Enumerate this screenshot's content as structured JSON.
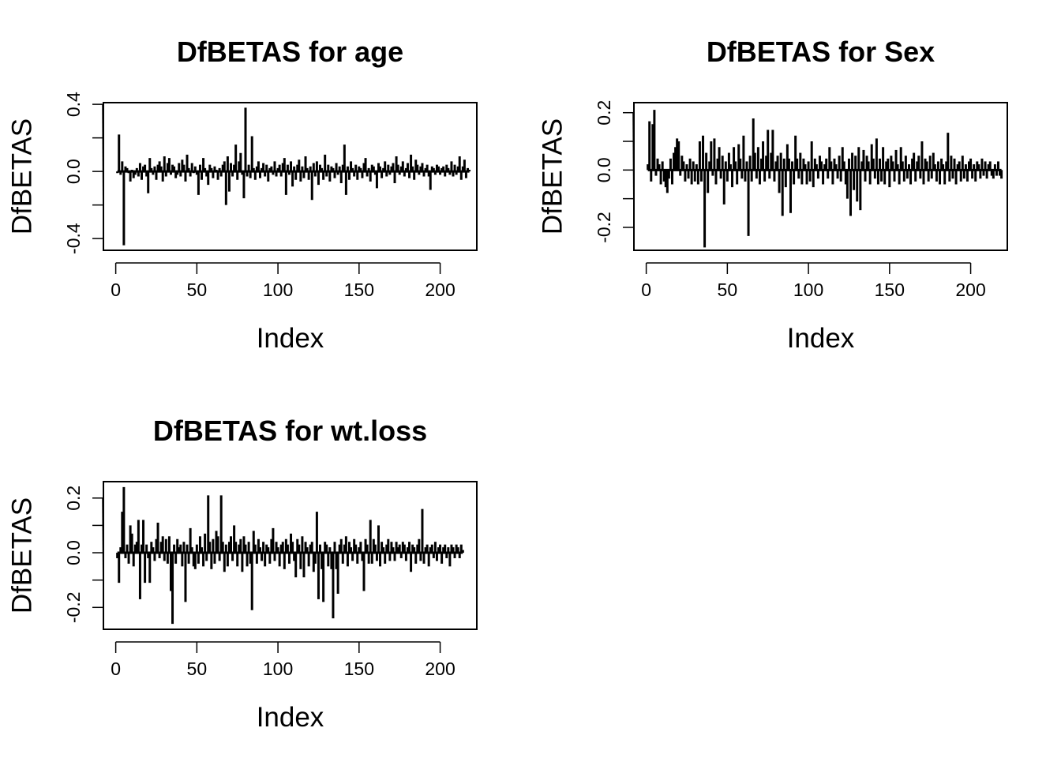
{
  "chart_data": [
    {
      "type": "line",
      "title": "DfBETAS for age",
      "xlabel": "Index",
      "ylabel": "DfBETAS",
      "xlim": [
        -7.6,
        222.6
      ],
      "ylim": [
        -0.47,
        0.41
      ],
      "xticks": [
        0,
        50,
        100,
        150,
        200
      ],
      "xtick_labels": [
        "0",
        "50",
        "100",
        "150",
        "200"
      ],
      "yticks": [
        -0.4,
        -0.2,
        0.0,
        0.2,
        0.4
      ],
      "ytick_labels": [
        "-0.4",
        "",
        "0.0",
        "",
        "0.4"
      ],
      "style": "vertical lines from zero (type h)",
      "n": 214,
      "series": [
        {
          "values": [
            -0.01,
            0.22,
            -0.02,
            0.06,
            -0.44,
            0.03,
            0.02,
            -0.01,
            -0.06,
            0.01,
            -0.04,
            -0.02,
            0.02,
            -0.03,
            0.05,
            -0.05,
            0.03,
            0.04,
            -0.03,
            -0.13,
            0.08,
            0.02,
            -0.02,
            0.03,
            -0.05,
            0.04,
            0.06,
            0.03,
            -0.06,
            0.09,
            -0.03,
            0.05,
            0.08,
            -0.02,
            0.04,
            0.03,
            -0.04,
            -0.02,
            0.05,
            -0.03,
            0.07,
            0.04,
            -0.06,
            0.1,
            0.02,
            -0.03,
            0.05,
            -0.01,
            0.03,
            -0.02,
            -0.14,
            0.04,
            -0.05,
            0.08,
            0.02,
            -0.03,
            -0.08,
            0.04,
            0.02,
            -0.04,
            0.03,
            0.01,
            -0.05,
            0.02,
            -0.03,
            0.04,
            0.06,
            -0.2,
            0.09,
            -0.12,
            0.05,
            -0.03,
            0.04,
            0.16,
            -0.05,
            0.06,
            0.11,
            -0.02,
            -0.16,
            0.38,
            -0.03,
            0.04,
            -0.04,
            0.21,
            0.02,
            -0.05,
            0.03,
            0.06,
            -0.04,
            0.02,
            0.05,
            -0.03,
            0.04,
            -0.06,
            0.02,
            0.03,
            -0.02,
            0.06,
            -0.03,
            0.02,
            0.04,
            -0.03,
            0.05,
            0.08,
            -0.14,
            0.04,
            -0.02,
            0.06,
            -0.09,
            0.03,
            -0.05,
            0.04,
            0.07,
            -0.06,
            0.03,
            -0.04,
            0.09,
            0.02,
            -0.05,
            0.03,
            -0.17,
            0.05,
            -0.03,
            0.06,
            -0.08,
            0.04,
            0.02,
            -0.05,
            0.1,
            -0.03,
            0.04,
            -0.06,
            0.03,
            0.02,
            -0.04,
            0.05,
            -0.02,
            0.03,
            -0.07,
            0.04,
            0.16,
            -0.14,
            0.03,
            -0.05,
            0.06,
            0.02,
            -0.03,
            0.04,
            -0.05,
            0.03,
            0.02,
            -0.04,
            0.05,
            0.08,
            -0.03,
            0.02,
            -0.06,
            0.04,
            0.03,
            -0.02,
            -0.1,
            0.05,
            0.03,
            -0.04,
            0.02,
            0.06,
            -0.03,
            0.04,
            -0.02,
            0.03,
            0.05,
            -0.07,
            0.09,
            0.04,
            -0.02,
            0.03,
            0.06,
            -0.03,
            0.02,
            0.05,
            -0.04,
            0.1,
            0.03,
            -0.05,
            0.07,
            0.04,
            -0.02,
            0.03,
            0.05,
            -0.03,
            0.02,
            0.04,
            -0.03,
            -0.11,
            0.03,
            0.02,
            -0.02,
            0.04,
            0.03,
            -0.02,
            0.02,
            0.03,
            -0.03,
            0.04,
            0.02,
            -0.02,
            0.06,
            -0.03,
            0.04,
            -0.02,
            0.03,
            0.09,
            -0.05,
            0.03,
            0.07,
            -0.04,
            0.02,
            0.01
          ]
        }
      ]
    },
    {
      "type": "line",
      "title": "DfBETAS for Sex",
      "xlabel": "Index",
      "ylabel": "DfBETAS",
      "xlim": [
        -7.6,
        222.6
      ],
      "ylim": [
        -0.28,
        0.235
      ],
      "xticks": [
        0,
        50,
        100,
        150,
        200
      ],
      "xtick_labels": [
        "0",
        "50",
        "100",
        "150",
        "200"
      ],
      "yticks": [
        -0.2,
        -0.1,
        0.0,
        0.1,
        0.2
      ],
      "ytick_labels": [
        "-0.2",
        "",
        "0.0",
        "",
        "0.2"
      ],
      "style": "vertical lines from zero (type h)",
      "n": 214,
      "series": [
        {
          "values": [
            0.02,
            0.17,
            -0.04,
            0.16,
            0.21,
            -0.02,
            0.04,
            0.02,
            -0.05,
            0.03,
            -0.04,
            -0.06,
            -0.08,
            -0.03,
            0.04,
            -0.05,
            0.06,
            0.08,
            0.11,
            0.1,
            -0.02,
            0.05,
            0.03,
            -0.04,
            0.02,
            -0.03,
            0.04,
            -0.05,
            0.03,
            -0.04,
            0.02,
            -0.05,
            0.1,
            -0.04,
            0.12,
            -0.27,
            0.06,
            -0.08,
            0.03,
            0.1,
            -0.02,
            0.11,
            -0.05,
            0.04,
            0.08,
            -0.03,
            0.05,
            -0.12,
            0.03,
            -0.04,
            0.06,
            0.02,
            -0.06,
            0.08,
            0.03,
            -0.05,
            0.09,
            0.04,
            -0.03,
            0.12,
            -0.04,
            0.03,
            -0.23,
            0.05,
            -0.04,
            0.18,
            0.06,
            -0.03,
            0.08,
            -0.05,
            0.04,
            0.1,
            -0.04,
            0.05,
            0.14,
            -0.03,
            0.06,
            0.14,
            -0.04,
            0.03,
            0.05,
            -0.08,
            0.06,
            -0.16,
            0.04,
            -0.06,
            0.09,
            0.04,
            -0.15,
            0.03,
            -0.05,
            0.12,
            0.04,
            -0.03,
            0.06,
            -0.05,
            0.04,
            0.02,
            -0.05,
            0.03,
            -0.04,
            0.1,
            -0.06,
            0.04,
            0.02,
            -0.03,
            0.05,
            0.03,
            -0.05,
            0.02,
            0.04,
            -0.03,
            0.08,
            0.03,
            -0.05,
            0.04,
            0.02,
            -0.03,
            0.05,
            -0.04,
            0.08,
            0.03,
            -0.05,
            -0.1,
            0.04,
            -0.16,
            0.06,
            -0.07,
            0.05,
            -0.11,
            0.08,
            -0.14,
            0.03,
            0.07,
            -0.04,
            0.05,
            0.03,
            -0.05,
            0.09,
            0.04,
            -0.03,
            0.11,
            -0.05,
            0.04,
            -0.04,
            0.08,
            -0.05,
            0.03,
            0.04,
            -0.06,
            0.05,
            0.03,
            -0.04,
            0.07,
            0.02,
            -0.05,
            0.08,
            0.03,
            -0.04,
            0.05,
            -0.03,
            0.02,
            -0.05,
            0.04,
            0.06,
            -0.04,
            0.03,
            0.05,
            -0.03,
            0.1,
            -0.05,
            0.04,
            0.03,
            -0.04,
            0.05,
            -0.03,
            0.06,
            0.02,
            -0.04,
            0.03,
            -0.05,
            0.04,
            0.02,
            -0.05,
            0.03,
            0.13,
            -0.04,
            0.05,
            -0.03,
            0.04,
            -0.05,
            0.02,
            0.03,
            -0.04,
            0.05,
            -0.03,
            0.02,
            -0.04,
            0.03,
            0.04,
            -0.03,
            0.02,
            -0.04,
            0.03,
            0.02,
            -0.03,
            0.04,
            -0.02,
            0.03,
            -0.03,
            0.02,
            0.03,
            -0.02,
            -0.03,
            0.02,
            -0.02,
            0.03,
            -0.02,
            -0.03
          ]
        }
      ]
    },
    {
      "type": "line",
      "title": "DfBETAS for wt.loss",
      "xlabel": "Index",
      "ylabel": "DfBETAS",
      "xlim": [
        -7.6,
        222.6
      ],
      "ylim": [
        -0.28,
        0.26
      ],
      "xticks": [
        0,
        50,
        100,
        150,
        200
      ],
      "xtick_labels": [
        "0",
        "50",
        "100",
        "150",
        "200"
      ],
      "yticks": [
        -0.2,
        -0.1,
        0.0,
        0.1,
        0.2
      ],
      "ytick_labels": [
        "-0.2",
        "",
        "0.0",
        "",
        "0.2"
      ],
      "style": "vertical lines from zero (type h)",
      "n": 214,
      "series": [
        {
          "values": [
            -0.02,
            -0.11,
            0.02,
            0.15,
            0.24,
            -0.02,
            0.03,
            -0.04,
            0.1,
            0.07,
            -0.05,
            0.03,
            0.04,
            0.12,
            -0.17,
            0.03,
            0.12,
            -0.11,
            0.03,
            -0.02,
            -0.11,
            0.04,
            0.02,
            -0.03,
            0.05,
            0.11,
            -0.02,
            0.04,
            0.06,
            -0.03,
            0.05,
            -0.04,
            0.06,
            -0.14,
            -0.26,
            0.03,
            -0.04,
            0.05,
            0.02,
            0.03,
            -0.05,
            0.04,
            -0.18,
            0.03,
            -0.04,
            0.09,
            0.02,
            -0.05,
            -0.06,
            0.03,
            -0.04,
            0.06,
            0.02,
            -0.05,
            0.07,
            -0.03,
            0.21,
            0.04,
            -0.06,
            0.05,
            -0.04,
            0.08,
            0.06,
            -0.03,
            0.21,
            0.04,
            -0.07,
            0.03,
            -0.05,
            0.04,
            0.06,
            -0.03,
            0.1,
            0.04,
            -0.05,
            0.03,
            0.05,
            -0.07,
            0.06,
            0.03,
            -0.05,
            0.04,
            -0.04,
            -0.21,
            0.08,
            0.03,
            -0.04,
            0.05,
            0.02,
            -0.03,
            0.04,
            -0.05,
            0.03,
            0.02,
            -0.04,
            0.05,
            0.09,
            -0.03,
            0.04,
            0.02,
            -0.05,
            0.03,
            0.04,
            -0.06,
            0.05,
            0.03,
            -0.04,
            0.07,
            0.04,
            -0.03,
            -0.09,
            0.05,
            0.03,
            -0.06,
            0.06,
            -0.09,
            0.04,
            0.02,
            -0.05,
            0.03,
            0.04,
            -0.07,
            -0.04,
            0.15,
            -0.17,
            0.03,
            -0.06,
            -0.18,
            0.04,
            0.03,
            -0.05,
            0.02,
            -0.06,
            -0.24,
            0.04,
            -0.06,
            -0.15,
            0.03,
            0.05,
            -0.04,
            0.03,
            0.06,
            -0.05,
            0.04,
            0.02,
            -0.03,
            0.05,
            0.03,
            -0.04,
            0.02,
            0.04,
            -0.03,
            -0.14,
            0.05,
            0.03,
            -0.04,
            0.12,
            -0.04,
            0.05,
            0.03,
            -0.03,
            0.1,
            -0.05,
            0.04,
            0.02,
            -0.04,
            0.03,
            0.05,
            -0.03,
            0.04,
            0.02,
            -0.03,
            0.04,
            0.02,
            0.03,
            -0.02,
            0.04,
            0.03,
            -0.03,
            0.02,
            0.04,
            -0.07,
            0.03,
            0.02,
            -0.04,
            0.03,
            0.05,
            -0.03,
            0.16,
            -0.04,
            0.02,
            0.03,
            -0.05,
            0.02,
            0.03,
            -0.02,
            0.04,
            -0.03,
            0.02,
            0.03,
            -0.04,
            0.02,
            0.03,
            -0.02,
            0.02,
            -0.05,
            0.03,
            0.02,
            -0.02,
            0.03,
            0.02,
            -0.02,
            0.03,
            0.01
          ]
        }
      ]
    }
  ]
}
